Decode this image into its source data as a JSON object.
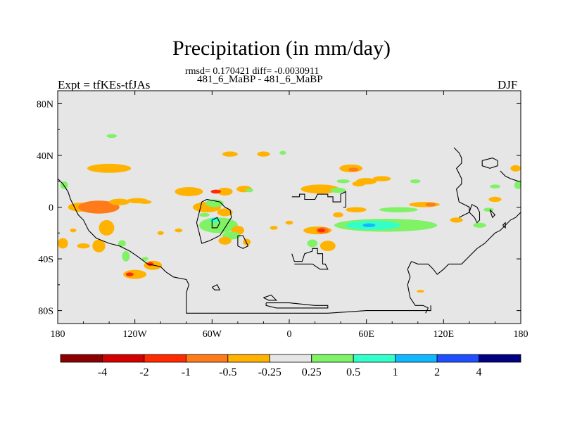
{
  "title": "Precipitation (in mm/day)",
  "stats_line": "rmsd= 0.170421 diff= -0.0030911",
  "experiment_pair": "481_6_MaBP - 481_6_MaBP",
  "expt_label": "Expt = tfKEs-tfJAs",
  "season": "DJF",
  "chart_data": {
    "type": "heatmap",
    "projection": "cylindrical equidistant",
    "xlim": [
      -180,
      180
    ],
    "ylim": [
      -90,
      90
    ],
    "x_ticks": [
      {
        "value": -180,
        "label": "180"
      },
      {
        "value": -120,
        "label": "120W"
      },
      {
        "value": -60,
        "label": "60W"
      },
      {
        "value": 0,
        "label": "0"
      },
      {
        "value": 60,
        "label": "60E"
      },
      {
        "value": 120,
        "label": "120E"
      },
      {
        "value": 180,
        "label": "180"
      }
    ],
    "y_ticks": [
      {
        "value": 80,
        "label": "80N"
      },
      {
        "value": 40,
        "label": "40N"
      },
      {
        "value": 0,
        "label": "0"
      },
      {
        "value": -40,
        "label": "40S"
      },
      {
        "value": -80,
        "label": "80S"
      }
    ],
    "background_color": "#e6e6e6",
    "colorbar": {
      "ticks": [
        "-4",
        "-2",
        "-1",
        "-0.5",
        "-0.25",
        "0.25",
        "0.5",
        "1",
        "2",
        "4"
      ],
      "colors": [
        "#8b0000",
        "#d40000",
        "#ff2a00",
        "#ff7b1a",
        "#ffb300",
        "#e6e6e6",
        "#7ff266",
        "#33ffcc",
        "#12b8ff",
        "#1f4fff",
        "#000080"
      ]
    },
    "features": [
      {
        "class": 4,
        "lon": -162,
        "lat": 0,
        "w": 20,
        "h": 7
      },
      {
        "class": 3,
        "lon": -148,
        "lat": 0,
        "w": 32,
        "h": 10
      },
      {
        "class": 4,
        "lon": -140,
        "lat": 30,
        "w": 34,
        "h": 7
      },
      {
        "class": 4,
        "lon": -132,
        "lat": 4,
        "w": 16,
        "h": 5
      },
      {
        "class": 4,
        "lon": -118,
        "lat": 5,
        "w": 16,
        "h": 4
      },
      {
        "class": 4,
        "lon": -112,
        "lat": 4,
        "w": 10,
        "h": 3
      },
      {
        "class": 4,
        "lon": -142,
        "lat": -16,
        "w": 12,
        "h": 12
      },
      {
        "class": 4,
        "lon": -148,
        "lat": -30,
        "w": 10,
        "h": 10
      },
      {
        "class": 6,
        "lon": -175,
        "lat": 17,
        "w": 6,
        "h": 6
      },
      {
        "class": 6,
        "lon": -130,
        "lat": -28,
        "w": 6,
        "h": 5
      },
      {
        "class": 6,
        "lon": -127,
        "lat": -38,
        "w": 6,
        "h": 8
      },
      {
        "class": 6,
        "lon": -138,
        "lat": 55,
        "w": 8,
        "h": 3
      },
      {
        "class": 4,
        "lon": -176,
        "lat": -28,
        "w": 8,
        "h": 8
      },
      {
        "class": 4,
        "lon": -168,
        "lat": -18,
        "w": 5,
        "h": 3
      },
      {
        "class": 4,
        "lon": -160,
        "lat": -30,
        "w": 10,
        "h": 4
      },
      {
        "class": 4,
        "lon": -120,
        "lat": -52,
        "w": 18,
        "h": 7
      },
      {
        "class": 2,
        "lon": -124,
        "lat": -52,
        "w": 6,
        "h": 3
      },
      {
        "class": 4,
        "lon": -106,
        "lat": -45,
        "w": 14,
        "h": 7
      },
      {
        "class": 2,
        "lon": -108,
        "lat": -44,
        "w": 5,
        "h": 3
      },
      {
        "class": 6,
        "lon": -112,
        "lat": -40,
        "w": 5,
        "h": 3
      },
      {
        "class": 4,
        "lon": -100,
        "lat": -20,
        "w": 5,
        "h": 3
      },
      {
        "class": 4,
        "lon": -86,
        "lat": -18,
        "w": 6,
        "h": 3
      },
      {
        "class": 4,
        "lon": -78,
        "lat": 12,
        "w": 22,
        "h": 7
      },
      {
        "class": 4,
        "lon": -50,
        "lat": 12,
        "w": 12,
        "h": 6
      },
      {
        "class": 2,
        "lon": -57,
        "lat": 12,
        "w": 8,
        "h": 3
      },
      {
        "class": 4,
        "lon": -35,
        "lat": 14,
        "w": 12,
        "h": 5
      },
      {
        "class": 6,
        "lon": -31,
        "lat": 13,
        "w": 6,
        "h": 3
      },
      {
        "class": 4,
        "lon": -64,
        "lat": 0,
        "w": 22,
        "h": 8
      },
      {
        "class": 4,
        "lon": -50,
        "lat": -4,
        "w": 12,
        "h": 6
      },
      {
        "class": 6,
        "lon": -55,
        "lat": -14,
        "w": 30,
        "h": 12
      },
      {
        "class": 7,
        "lon": -58,
        "lat": -10,
        "w": 8,
        "h": 4
      },
      {
        "class": 6,
        "lon": -58,
        "lat": 3,
        "w": 14,
        "h": 6
      },
      {
        "class": 6,
        "lon": -66,
        "lat": -6,
        "w": 8,
        "h": 3
      },
      {
        "class": 4,
        "lon": -40,
        "lat": -18,
        "w": 10,
        "h": 7
      },
      {
        "class": 6,
        "lon": -45,
        "lat": -22,
        "w": 14,
        "h": 6
      },
      {
        "class": 4,
        "lon": -50,
        "lat": -26,
        "w": 10,
        "h": 6
      },
      {
        "class": 4,
        "lon": -33,
        "lat": -27,
        "w": 6,
        "h": 5
      },
      {
        "class": 4,
        "lon": -12,
        "lat": -16,
        "w": 6,
        "h": 3
      },
      {
        "class": 4,
        "lon": 0,
        "lat": -12,
        "w": 6,
        "h": 3
      },
      {
        "class": 4,
        "lon": 22,
        "lat": -18,
        "w": 22,
        "h": 6
      },
      {
        "class": 3,
        "lon": 26,
        "lat": -18,
        "w": 10,
        "h": 5
      },
      {
        "class": 2,
        "lon": 25,
        "lat": -18,
        "w": 6,
        "h": 3
      },
      {
        "class": 4,
        "lon": 30,
        "lat": -30,
        "w": 12,
        "h": 8
      },
      {
        "class": 6,
        "lon": 18,
        "lat": -28,
        "w": 8,
        "h": 6
      },
      {
        "class": 4,
        "lon": -46,
        "lat": 41,
        "w": 12,
        "h": 4
      },
      {
        "class": 4,
        "lon": -20,
        "lat": 41,
        "w": 10,
        "h": 4
      },
      {
        "class": 6,
        "lon": -5,
        "lat": 42,
        "w": 5,
        "h": 3
      },
      {
        "class": 4,
        "lon": 24,
        "lat": 14,
        "w": 30,
        "h": 7
      },
      {
        "class": 4,
        "lon": 48,
        "lat": 30,
        "w": 18,
        "h": 6
      },
      {
        "class": 3,
        "lon": 50,
        "lat": 29,
        "w": 8,
        "h": 3
      },
      {
        "class": 6,
        "lon": 38,
        "lat": 13,
        "w": 12,
        "h": 4
      },
      {
        "class": 4,
        "lon": 60,
        "lat": 20,
        "w": 16,
        "h": 5
      },
      {
        "class": 4,
        "lon": 72,
        "lat": 22,
        "w": 14,
        "h": 4
      },
      {
        "class": 6,
        "lon": 42,
        "lat": 20,
        "w": 10,
        "h": 3
      },
      {
        "class": 4,
        "lon": 52,
        "lat": -2,
        "w": 16,
        "h": 4
      },
      {
        "class": 4,
        "lon": 38,
        "lat": -6,
        "w": 8,
        "h": 4
      },
      {
        "class": 4,
        "lon": 54,
        "lat": 18,
        "w": 10,
        "h": 4
      },
      {
        "class": 6,
        "lon": 75,
        "lat": -14,
        "w": 80,
        "h": 10
      },
      {
        "class": 7,
        "lon": 65,
        "lat": -14,
        "w": 42,
        "h": 7
      },
      {
        "class": 8,
        "lon": 62,
        "lat": -14,
        "w": 10,
        "h": 3
      },
      {
        "class": 6,
        "lon": 85,
        "lat": -2,
        "w": 30,
        "h": 4
      },
      {
        "class": 4,
        "lon": 105,
        "lat": 2,
        "w": 24,
        "h": 4
      },
      {
        "class": 3,
        "lon": 110,
        "lat": 2,
        "w": 8,
        "h": 3
      },
      {
        "class": 6,
        "lon": 98,
        "lat": 20,
        "w": 8,
        "h": 3
      },
      {
        "class": 4,
        "lon": 130,
        "lat": -10,
        "w": 10,
        "h": 4
      },
      {
        "class": 6,
        "lon": 148,
        "lat": -14,
        "w": 10,
        "h": 4
      },
      {
        "class": 4,
        "lon": 160,
        "lat": 6,
        "w": 10,
        "h": 4
      },
      {
        "class": 6,
        "lon": 160,
        "lat": 16,
        "w": 8,
        "h": 3
      },
      {
        "class": 6,
        "lon": 178,
        "lat": 17,
        "w": 6,
        "h": 6
      },
      {
        "class": 4,
        "lon": 176,
        "lat": 30,
        "w": 8,
        "h": 5
      },
      {
        "class": 6,
        "lon": 155,
        "lat": -2,
        "w": 8,
        "h": 3
      },
      {
        "class": 4,
        "lon": 102,
        "lat": -65,
        "w": 6,
        "h": 2
      }
    ]
  }
}
